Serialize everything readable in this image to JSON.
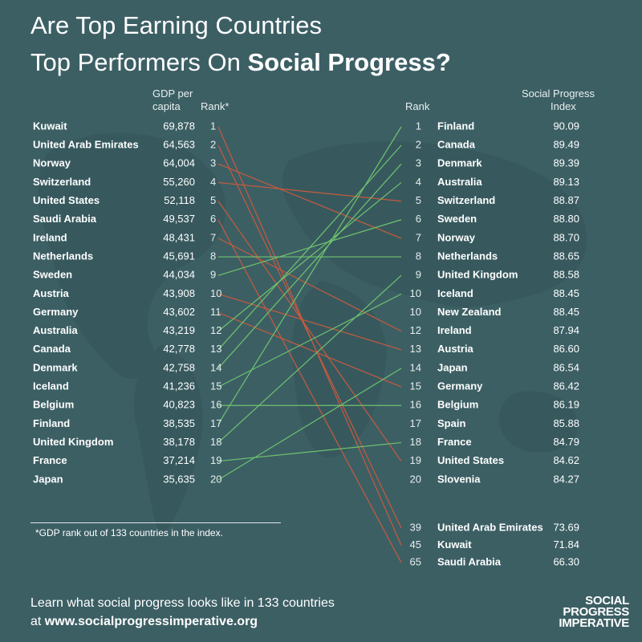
{
  "title": {
    "line1": "Are Top Earning Countries",
    "line2_prefix": "Top Performers On",
    "line2_bold": "Social Progress?"
  },
  "headers": {
    "gdp_line1": "GDP per",
    "gdp_line2": "capita",
    "rank_left": "Rank*",
    "rank_right": "Rank",
    "spi_line1": "Social Progress",
    "spi_line2": "Index"
  },
  "footnote": "*GDP rank out of 133 countries in the index.",
  "footer": {
    "line1": "Learn what social progress looks like in 133 countries",
    "line2_prefix": "at",
    "line2_url": "www.socialprogressimperative.org"
  },
  "logo": [
    "SOCIAL",
    "PROGRESS",
    "IMPERATIVE"
  ],
  "colors": {
    "background": "#3c5f64",
    "improved_line": "#6fc36f",
    "worsened_line": "#c85a3e",
    "same_line": "#6fc36f"
  },
  "chart_data": {
    "type": "slope",
    "left": {
      "title": "GDP per capita rank",
      "rows": [
        {
          "country": "Kuwait",
          "gdp": "69,878",
          "rank": 1
        },
        {
          "country": "United Arab Emirates",
          "gdp": "64,563",
          "rank": 2
        },
        {
          "country": "Norway",
          "gdp": "64,004",
          "rank": 3
        },
        {
          "country": "Switzerland",
          "gdp": "55,260",
          "rank": 4
        },
        {
          "country": "United States",
          "gdp": "52,118",
          "rank": 5
        },
        {
          "country": "Saudi Arabia",
          "gdp": "49,537",
          "rank": 6
        },
        {
          "country": "Ireland",
          "gdp": "48,431",
          "rank": 7
        },
        {
          "country": "Netherlands",
          "gdp": "45,691",
          "rank": 8
        },
        {
          "country": "Sweden",
          "gdp": "44,034",
          "rank": 9
        },
        {
          "country": "Austria",
          "gdp": "43,908",
          "rank": 10
        },
        {
          "country": "Germany",
          "gdp": "43,602",
          "rank": 11
        },
        {
          "country": "Australia",
          "gdp": "43,219",
          "rank": 12
        },
        {
          "country": "Canada",
          "gdp": "42,778",
          "rank": 13
        },
        {
          "country": "Denmark",
          "gdp": "42,758",
          "rank": 14
        },
        {
          "country": "Iceland",
          "gdp": "41,236",
          "rank": 15
        },
        {
          "country": "Belgium",
          "gdp": "40,823",
          "rank": 16
        },
        {
          "country": "Finland",
          "gdp": "38,535",
          "rank": 17
        },
        {
          "country": "United Kingdom",
          "gdp": "38,178",
          "rank": 18
        },
        {
          "country": "France",
          "gdp": "37,214",
          "rank": 19
        },
        {
          "country": "Japan",
          "gdp": "35,635",
          "rank": 20
        }
      ]
    },
    "right": {
      "title": "Social Progress Index rank",
      "rows": [
        {
          "country": "Finland",
          "spi": "90.09",
          "rank": 1
        },
        {
          "country": "Canada",
          "spi": "89.49",
          "rank": 2
        },
        {
          "country": "Denmark",
          "spi": "89.39",
          "rank": 3
        },
        {
          "country": "Australia",
          "spi": "89.13",
          "rank": 4
        },
        {
          "country": "Switzerland",
          "spi": "88.87",
          "rank": 5
        },
        {
          "country": "Sweden",
          "spi": "88.80",
          "rank": 6
        },
        {
          "country": "Norway",
          "spi": "88.70",
          "rank": 7
        },
        {
          "country": "Netherlands",
          "spi": "88.65",
          "rank": 8
        },
        {
          "country": "United Kingdom",
          "spi": "88.58",
          "rank": 9
        },
        {
          "country": "Iceland",
          "spi": "88.45",
          "rank": 10
        },
        {
          "country": "New Zealand",
          "spi": "88.45",
          "rank": 10
        },
        {
          "country": "Ireland",
          "spi": "87.94",
          "rank": 12
        },
        {
          "country": "Austria",
          "spi": "86.60",
          "rank": 13
        },
        {
          "country": "Japan",
          "spi": "86.54",
          "rank": 14
        },
        {
          "country": "Germany",
          "spi": "86.42",
          "rank": 15
        },
        {
          "country": "Belgium",
          "spi": "86.19",
          "rank": 16
        },
        {
          "country": "Spain",
          "spi": "85.88",
          "rank": 17
        },
        {
          "country": "France",
          "spi": "84.79",
          "rank": 18
        },
        {
          "country": "United States",
          "spi": "84.62",
          "rank": 19
        },
        {
          "country": "Slovenia",
          "spi": "84.27",
          "rank": 20
        },
        {
          "country": "United Arab Emirates",
          "spi": "73.69",
          "rank": 39
        },
        {
          "country": "Kuwait",
          "spi": "71.84",
          "rank": 45
        },
        {
          "country": "Saudi Arabia",
          "spi": "66.30",
          "rank": 65
        }
      ]
    }
  }
}
